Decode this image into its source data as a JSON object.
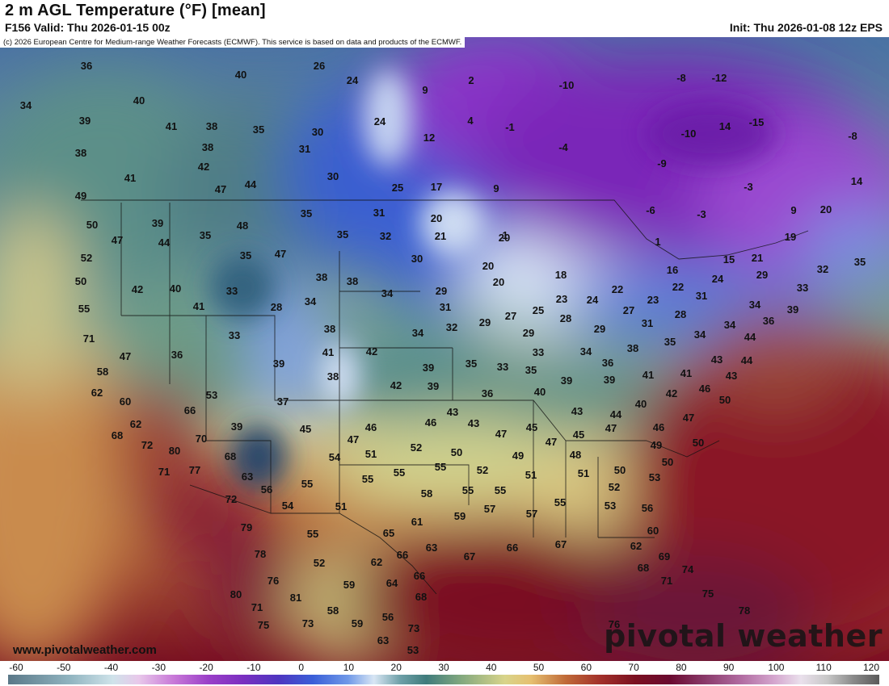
{
  "header": {
    "title": "2 m AGL Temperature (°F) [mean]",
    "valid": "F156 Valid: Thu 2026-01-15 00z",
    "init": "Init: Thu 2026-01-08 12z EPS",
    "copyright": "(c) 2026 European Centre for Medium-range Weather Forecasts (ECMWF). This service is based on data and products of the ECMWF."
  },
  "footer": {
    "site": "www.pivotalweather.com",
    "brand": "pivotal weather"
  },
  "colorbar": {
    "ticks": [
      "-60",
      "-50",
      "-40",
      "-30",
      "-20",
      "-10",
      "0",
      "10",
      "20",
      "30",
      "40",
      "50",
      "60",
      "70",
      "80",
      "90",
      "100",
      "110",
      "120"
    ]
  },
  "map": {
    "labels": [
      [
        "36",
        107,
        82
      ],
      [
        "26",
        395,
        82
      ],
      [
        "40",
        298,
        93
      ],
      [
        "24",
        436,
        100
      ],
      [
        "2",
        583,
        100
      ],
      [
        "-10",
        701,
        106
      ],
      [
        "-8",
        843,
        97
      ],
      [
        "-12",
        890,
        97
      ],
      [
        "9",
        526,
        112
      ],
      [
        "34",
        32,
        131
      ],
      [
        "40",
        172,
        125
      ],
      [
        "39",
        105,
        150
      ],
      [
        "41",
        212,
        157
      ],
      [
        "38",
        262,
        157
      ],
      [
        "35",
        320,
        161
      ],
      [
        "30",
        393,
        164
      ],
      [
        "24",
        470,
        151
      ],
      [
        "4",
        582,
        150
      ],
      [
        "-1",
        631,
        158
      ],
      [
        "14",
        897,
        157
      ],
      [
        "-15",
        936,
        152
      ],
      [
        "-10",
        852,
        166
      ],
      [
        "-8",
        1055,
        169
      ],
      [
        "12",
        531,
        171
      ],
      [
        "38",
        100,
        190
      ],
      [
        "38",
        257,
        183
      ],
      [
        "31",
        377,
        185
      ],
      [
        "-4",
        697,
        183
      ],
      [
        "42",
        252,
        207
      ],
      [
        "41",
        161,
        221
      ],
      [
        "30",
        412,
        219
      ],
      [
        "17",
        540,
        232
      ],
      [
        "9",
        614,
        234
      ],
      [
        "-9",
        819,
        203
      ],
      [
        "-3",
        926,
        232
      ],
      [
        "14",
        1060,
        225
      ],
      [
        "44",
        310,
        229
      ],
      [
        "47",
        273,
        235
      ],
      [
        "49",
        100,
        243
      ],
      [
        "25",
        492,
        233
      ],
      [
        "39",
        195,
        277
      ],
      [
        "35",
        379,
        265
      ],
      [
        "31",
        469,
        264
      ],
      [
        "20",
        540,
        271
      ],
      [
        "1",
        625,
        292
      ],
      [
        "-6",
        805,
        261
      ],
      [
        "-3",
        868,
        266
      ],
      [
        "9",
        982,
        261
      ],
      [
        "20",
        1022,
        260
      ],
      [
        "50",
        114,
        279
      ],
      [
        "47",
        145,
        298
      ],
      [
        "44",
        203,
        301
      ],
      [
        "35",
        254,
        292
      ],
      [
        "48",
        300,
        280
      ],
      [
        "35",
        424,
        291
      ],
      [
        "32",
        477,
        293
      ],
      [
        "21",
        545,
        293
      ],
      [
        "20",
        624,
        295
      ],
      [
        "19",
        978,
        294
      ],
      [
        "52",
        107,
        320
      ],
      [
        "35",
        304,
        317
      ],
      [
        "47",
        347,
        315
      ],
      [
        "30",
        516,
        321
      ],
      [
        "20",
        604,
        330
      ],
      [
        "1",
        814,
        300
      ],
      [
        "15",
        902,
        322
      ],
      [
        "21",
        937,
        320
      ],
      [
        "32",
        1018,
        334
      ],
      [
        "35",
        1064,
        325
      ],
      [
        "50",
        100,
        349
      ],
      [
        "42",
        170,
        359
      ],
      [
        "40",
        217,
        358
      ],
      [
        "38",
        398,
        344
      ],
      [
        "38",
        436,
        349
      ],
      [
        "18",
        694,
        341
      ],
      [
        "16",
        832,
        335
      ],
      [
        "29",
        943,
        341
      ],
      [
        "33",
        287,
        361
      ],
      [
        "34",
        479,
        364
      ],
      [
        "29",
        546,
        361
      ],
      [
        "20",
        617,
        350
      ],
      [
        "23",
        695,
        371
      ],
      [
        "24",
        733,
        372
      ],
      [
        "22",
        764,
        359
      ],
      [
        "22",
        839,
        356
      ],
      [
        "24",
        888,
        346
      ],
      [
        "33",
        993,
        357
      ],
      [
        "55",
        104,
        383
      ],
      [
        "41",
        246,
        380
      ],
      [
        "28",
        342,
        381
      ],
      [
        "34",
        384,
        374
      ],
      [
        "31",
        551,
        381
      ],
      [
        "27",
        632,
        392
      ],
      [
        "25",
        666,
        385
      ],
      [
        "27",
        778,
        385
      ],
      [
        "23",
        808,
        372
      ],
      [
        "31",
        868,
        367
      ],
      [
        "34",
        934,
        378
      ],
      [
        "39",
        981,
        384
      ],
      [
        "29",
        600,
        400
      ],
      [
        "28",
        700,
        395
      ],
      [
        "29",
        742,
        408
      ],
      [
        "31",
        801,
        401
      ],
      [
        "28",
        842,
        390
      ],
      [
        "34",
        903,
        403
      ],
      [
        "36",
        951,
        398
      ],
      [
        "71",
        110,
        420
      ],
      [
        "33",
        290,
        416
      ],
      [
        "38",
        408,
        408
      ],
      [
        "34",
        517,
        413
      ],
      [
        "32",
        559,
        406
      ],
      [
        "29",
        654,
        413
      ],
      [
        "35",
        829,
        424
      ],
      [
        "34",
        866,
        415
      ],
      [
        "44",
        928,
        418
      ],
      [
        "47",
        155,
        442
      ],
      [
        "36",
        219,
        440
      ],
      [
        "41",
        406,
        437
      ],
      [
        "42",
        460,
        436
      ],
      [
        "33",
        666,
        437
      ],
      [
        "34",
        725,
        436
      ],
      [
        "36",
        752,
        450
      ],
      [
        "38",
        783,
        432
      ],
      [
        "44",
        924,
        447
      ],
      [
        "39",
        345,
        451
      ],
      [
        "35",
        583,
        451
      ],
      [
        "33",
        622,
        455
      ],
      [
        "35",
        657,
        459
      ],
      [
        "43",
        887,
        446
      ],
      [
        "58",
        127,
        461
      ],
      [
        "38",
        412,
        467
      ],
      [
        "39",
        530,
        456
      ],
      [
        "39",
        701,
        472
      ],
      [
        "39",
        754,
        471
      ],
      [
        "41",
        802,
        465
      ],
      [
        "41",
        849,
        463
      ],
      [
        "43",
        905,
        466
      ],
      [
        "62",
        120,
        487
      ],
      [
        "42",
        490,
        478
      ],
      [
        "39",
        536,
        479
      ],
      [
        "40",
        668,
        486
      ],
      [
        "42",
        831,
        488
      ],
      [
        "46",
        872,
        482
      ],
      [
        "60",
        155,
        498
      ],
      [
        "53",
        262,
        490
      ],
      [
        "37",
        350,
        498
      ],
      [
        "36",
        603,
        488
      ],
      [
        "40",
        793,
        501
      ],
      [
        "50",
        897,
        496
      ],
      [
        "66",
        235,
        509
      ],
      [
        "43",
        560,
        511
      ],
      [
        "43",
        714,
        510
      ],
      [
        "44",
        762,
        514
      ],
      [
        "47",
        852,
        518
      ],
      [
        "62",
        168,
        526
      ],
      [
        "39",
        293,
        529
      ],
      [
        "46",
        459,
        530
      ],
      [
        "46",
        533,
        524
      ],
      [
        "43",
        586,
        525
      ],
      [
        "46",
        815,
        530
      ],
      [
        "68",
        145,
        540
      ],
      [
        "70",
        249,
        544
      ],
      [
        "45",
        378,
        532
      ],
      [
        "47",
        437,
        545
      ],
      [
        "47",
        620,
        538
      ],
      [
        "45",
        658,
        530
      ],
      [
        "45",
        716,
        539
      ],
      [
        "47",
        756,
        531
      ],
      [
        "49",
        812,
        552
      ],
      [
        "50",
        864,
        549
      ],
      [
        "72",
        182,
        552
      ],
      [
        "80",
        216,
        559
      ],
      [
        "68",
        285,
        566
      ],
      [
        "54",
        414,
        567
      ],
      [
        "51",
        459,
        563
      ],
      [
        "52",
        515,
        555
      ],
      [
        "50",
        565,
        561
      ],
      [
        "47",
        682,
        548
      ],
      [
        "49",
        641,
        565
      ],
      [
        "48",
        712,
        564
      ],
      [
        "71",
        203,
        585
      ],
      [
        "77",
        241,
        583
      ],
      [
        "63",
        306,
        591
      ],
      [
        "55",
        494,
        586
      ],
      [
        "55",
        545,
        579
      ],
      [
        "52",
        597,
        583
      ],
      [
        "51",
        657,
        589
      ],
      [
        "51",
        722,
        587
      ],
      [
        "50",
        767,
        583
      ],
      [
        "50",
        826,
        573
      ],
      [
        "56",
        330,
        607
      ],
      [
        "55",
        380,
        600
      ],
      [
        "55",
        455,
        594
      ],
      [
        "58",
        528,
        612
      ],
      [
        "55",
        579,
        608
      ],
      [
        "55",
        619,
        608
      ],
      [
        "52",
        760,
        604
      ],
      [
        "53",
        810,
        592
      ],
      [
        "72",
        286,
        619
      ],
      [
        "54",
        356,
        627
      ],
      [
        "51",
        422,
        628
      ],
      [
        "57",
        606,
        631
      ],
      [
        "59",
        569,
        640
      ],
      [
        "57",
        658,
        637
      ],
      [
        "55",
        693,
        623
      ],
      [
        "53",
        755,
        627
      ],
      [
        "56",
        801,
        630
      ],
      [
        "79",
        305,
        654
      ],
      [
        "55",
        387,
        662
      ],
      [
        "61",
        516,
        647
      ],
      [
        "65",
        481,
        661
      ],
      [
        "60",
        808,
        658
      ],
      [
        "78",
        322,
        687
      ],
      [
        "52",
        395,
        698
      ],
      [
        "62",
        466,
        697
      ],
      [
        "66",
        498,
        688
      ],
      [
        "63",
        534,
        679
      ],
      [
        "67",
        581,
        690
      ],
      [
        "66",
        634,
        679
      ],
      [
        "67",
        694,
        675
      ],
      [
        "62",
        787,
        677
      ],
      [
        "69",
        822,
        690
      ],
      [
        "68",
        796,
        704
      ],
      [
        "74",
        851,
        706
      ],
      [
        "76",
        338,
        720
      ],
      [
        "59",
        432,
        725
      ],
      [
        "64",
        485,
        723
      ],
      [
        "66",
        519,
        714
      ],
      [
        "71",
        825,
        720
      ],
      [
        "80",
        292,
        737
      ],
      [
        "81",
        366,
        741
      ],
      [
        "68",
        521,
        740
      ],
      [
        "75",
        876,
        736
      ],
      [
        "71",
        318,
        753
      ],
      [
        "58",
        412,
        757
      ],
      [
        "56",
        480,
        765
      ],
      [
        "78",
        921,
        757
      ],
      [
        "75",
        326,
        775
      ],
      [
        "73",
        381,
        773
      ],
      [
        "59",
        442,
        773
      ],
      [
        "73",
        512,
        779
      ],
      [
        "76",
        760,
        774
      ],
      [
        "63",
        474,
        794
      ],
      [
        "53",
        511,
        806
      ]
    ]
  }
}
